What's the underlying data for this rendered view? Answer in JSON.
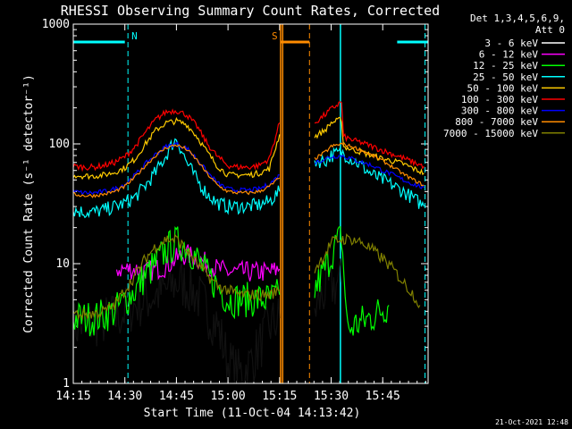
{
  "chart_data": {
    "type": "line",
    "title": "RHESSI Observing Summary Count Rates, Corrected",
    "xlabel": "Start Time (11-Oct-04 14:13:42)",
    "ylabel": "Corrected Count Rate (s⁻¹ detector⁻¹)",
    "footer": "21-Oct-2021 12:48",
    "legend_header": [
      "Det 1,3,4,5,6,9,",
      "Att 0"
    ],
    "legend_position": "right",
    "yscale": "log",
    "ylim": [
      1,
      1000
    ],
    "xlim_minutes": [
      14.25,
      15.97
    ],
    "x_ticks": [
      {
        "v": 14.25,
        "label": "14:15"
      },
      {
        "v": 14.5,
        "label": "14:30"
      },
      {
        "v": 14.75,
        "label": "14:45"
      },
      {
        "v": 15.0,
        "label": "15:00"
      },
      {
        "v": 15.25,
        "label": "15:15"
      },
      {
        "v": 15.5,
        "label": "15:30"
      },
      {
        "v": 15.75,
        "label": "15:45"
      }
    ],
    "y_ticks": [
      {
        "v": 1,
        "label": "1"
      },
      {
        "v": 10,
        "label": "10"
      },
      {
        "v": 100,
        "label": "100"
      },
      {
        "v": 1000,
        "label": "1000"
      }
    ],
    "markers": [
      {
        "label": "N",
        "color": "#00ffff",
        "bar_from": 14.25,
        "bar_to": 14.5,
        "dashed_at": [
          14.515
        ],
        "solid_at": []
      },
      {
        "label": "S",
        "color": "#ff8c00",
        "bar_from": 15.255,
        "bar_to": 15.395,
        "dashed_at": [
          15.395
        ],
        "solid_at": [
          15.255,
          15.265
        ]
      },
      {
        "label": "",
        "color": "#00ffff",
        "bar_from": 15.82,
        "bar_to": 15.97,
        "dashed_at": [
          15.955
        ],
        "solid_at": [
          15.545
        ]
      }
    ],
    "series": [
      {
        "name": "3 - 6 keV",
        "color": "#000000",
        "noise": 0.45,
        "x": [
          14.25,
          14.35,
          14.45,
          14.55,
          14.6,
          14.65,
          14.7,
          14.75,
          14.8,
          14.85,
          14.9,
          14.95,
          15.0,
          15.05,
          15.1,
          15.15,
          15.2,
          15.25,
          null,
          15.42,
          15.47,
          15.5,
          15.55
        ],
        "y": [
          3,
          3.2,
          3.5,
          4.5,
          5,
          5.5,
          6,
          7,
          6.5,
          5.5,
          4,
          3,
          1.5,
          1.2,
          1.4,
          2,
          3,
          3.5,
          null,
          4,
          6,
          6.5,
          7
        ]
      },
      {
        "name": "6 - 12 keV",
        "color": "#ff00ff",
        "noise": 0.18,
        "x": [
          14.46,
          14.55,
          14.6,
          14.65,
          14.7,
          14.75,
          14.8,
          14.85,
          14.9,
          14.95,
          15.0,
          15.05,
          15.1,
          15.15,
          15.2,
          15.25
        ],
        "y": [
          9,
          9,
          8.5,
          9,
          9.5,
          11,
          12,
          11,
          10,
          9,
          8.5,
          8.5,
          8.5,
          8.5,
          8.5,
          9
        ]
      },
      {
        "name": "12 - 25 keV",
        "color": "#00ff00",
        "noise": 0.3,
        "x": [
          14.25,
          14.35,
          14.45,
          14.55,
          14.6,
          14.65,
          14.7,
          14.75,
          14.8,
          14.85,
          14.9,
          14.95,
          15.0,
          15.05,
          15.1,
          15.15,
          15.2,
          15.25,
          null,
          15.42,
          15.47,
          15.52,
          15.55,
          15.58,
          15.62,
          15.67,
          15.72,
          15.75,
          15.78
        ],
        "y": [
          3.5,
          3.5,
          4,
          6,
          8,
          10,
          13,
          15,
          14,
          11,
          8,
          6.5,
          5,
          5,
          5,
          5,
          5,
          5.5,
          null,
          6,
          9,
          14,
          17,
          2.8,
          3.1,
          3.4,
          3.8,
          4.2,
          4.5
        ]
      },
      {
        "name": "25 - 50 keV",
        "color": "#00ffff",
        "noise": 0.12,
        "x": [
          14.25,
          14.3,
          14.35,
          14.4,
          14.45,
          14.5,
          14.55,
          14.6,
          14.65,
          14.7,
          14.73,
          14.75,
          14.78,
          14.8,
          14.85,
          14.9,
          14.95,
          15.0,
          15.05,
          15.1,
          15.15,
          15.2,
          15.25,
          null,
          15.42,
          15.47,
          15.5,
          15.55,
          15.6,
          15.65,
          15.7,
          15.75,
          15.8,
          15.85,
          15.9,
          15.95
        ],
        "y": [
          28,
          27,
          27,
          28,
          30,
          32,
          36,
          45,
          58,
          80,
          100,
          110,
          85,
          70,
          50,
          38,
          32,
          30,
          30,
          30,
          31,
          33,
          40,
          null,
          72,
          72,
          80,
          85,
          75,
          65,
          55,
          50,
          45,
          40,
          35,
          30
        ]
      },
      {
        "name": "50 - 100 keV",
        "color": "#ffcc00",
        "noise": 0.05,
        "x": [
          14.25,
          14.3,
          14.35,
          14.4,
          14.45,
          14.5,
          14.55,
          14.6,
          14.65,
          14.7,
          14.75,
          14.8,
          14.85,
          14.9,
          14.95,
          15.0,
          15.05,
          15.1,
          15.15,
          15.2,
          15.25,
          null,
          15.42,
          15.47,
          15.5,
          15.55,
          15.56,
          15.6,
          15.65,
          15.7,
          15.75,
          15.8,
          15.85,
          15.9,
          15.95
        ],
        "y": [
          55,
          54,
          54,
          55,
          58,
          63,
          75,
          100,
          130,
          150,
          155,
          145,
          115,
          85,
          65,
          55,
          55,
          55,
          57,
          62,
          120,
          null,
          115,
          130,
          150,
          160,
          95,
          90,
          85,
          80,
          75,
          72,
          68,
          62,
          57
        ]
      },
      {
        "name": "100 - 300 keV",
        "color": "#ff0000",
        "noise": 0.05,
        "x": [
          14.25,
          14.3,
          14.35,
          14.4,
          14.45,
          14.5,
          14.55,
          14.6,
          14.65,
          14.7,
          14.75,
          14.8,
          14.85,
          14.9,
          14.95,
          15.0,
          15.05,
          15.1,
          15.15,
          15.2,
          15.25,
          null,
          15.42,
          15.47,
          15.5,
          15.55,
          15.56,
          15.6,
          15.65,
          15.7,
          15.75,
          15.8,
          15.85,
          15.9,
          15.95
        ],
        "y": [
          65,
          64,
          64,
          66,
          70,
          78,
          95,
          125,
          160,
          185,
          190,
          175,
          140,
          100,
          78,
          66,
          64,
          64,
          66,
          75,
          150,
          null,
          150,
          175,
          195,
          225,
          115,
          108,
          102,
          95,
          88,
          82,
          76,
          70,
          65
        ]
      },
      {
        "name": "300 - 800 keV",
        "color": "#0000ff",
        "noise": 0.04,
        "x": [
          14.25,
          14.3,
          14.35,
          14.4,
          14.45,
          14.5,
          14.55,
          14.6,
          14.65,
          14.7,
          14.75,
          14.8,
          14.85,
          14.9,
          14.95,
          15.0,
          15.05,
          15.1,
          15.15,
          15.2,
          15.25,
          null,
          15.42,
          15.47,
          15.5,
          15.55,
          15.6,
          15.65,
          15.7,
          15.75,
          15.8,
          15.85,
          15.9,
          15.95
        ],
        "y": [
          40,
          39,
          39,
          40,
          42,
          46,
          55,
          68,
          82,
          95,
          100,
          92,
          75,
          58,
          47,
          42,
          41,
          41,
          42,
          46,
          55,
          null,
          70,
          75,
          78,
          80,
          75,
          70,
          66,
          60,
          55,
          50,
          46,
          43
        ]
      },
      {
        "name": "800 - 7000 keV",
        "color": "#ff8c00",
        "noise": 0.03,
        "x": [
          14.25,
          14.3,
          14.35,
          14.4,
          14.45,
          14.5,
          14.55,
          14.6,
          14.65,
          14.7,
          14.75,
          14.8,
          14.85,
          14.9,
          14.95,
          15.0,
          15.05,
          15.1,
          15.15,
          15.2,
          15.25,
          null,
          15.42,
          15.47,
          15.5,
          15.55,
          15.6,
          15.65,
          15.7,
          15.75,
          15.8,
          15.85,
          15.9,
          15.95
        ],
        "y": [
          38,
          37,
          37,
          38,
          40,
          44,
          53,
          66,
          80,
          93,
          98,
          90,
          73,
          56,
          45,
          40,
          39,
          39,
          40,
          44,
          52,
          null,
          75,
          85,
          95,
          100,
          95,
          88,
          80,
          72,
          64,
          56,
          50,
          45
        ]
      },
      {
        "name": "7000 - 15000 keV",
        "color": "#808000",
        "noise": 0.1,
        "x": [
          14.25,
          14.3,
          14.35,
          14.4,
          14.45,
          14.5,
          14.55,
          14.6,
          14.65,
          14.7,
          14.75,
          14.8,
          14.85,
          14.9,
          14.95,
          15.0,
          15.05,
          15.1,
          15.15,
          15.2,
          15.25,
          null,
          15.42,
          15.47,
          15.5,
          15.55,
          15.6,
          15.65,
          15.7,
          15.75,
          15.8,
          15.85,
          15.9,
          15.93
        ],
        "y": [
          3.8,
          3.8,
          3.8,
          4,
          4.5,
          6,
          8,
          11,
          14,
          16,
          16,
          13,
          10,
          8,
          6.5,
          6,
          5.5,
          5.5,
          5.5,
          5.5,
          6,
          null,
          9,
          12,
          15,
          16,
          16,
          15,
          13,
          11,
          9,
          7,
          5.5,
          4.5
        ]
      }
    ]
  }
}
